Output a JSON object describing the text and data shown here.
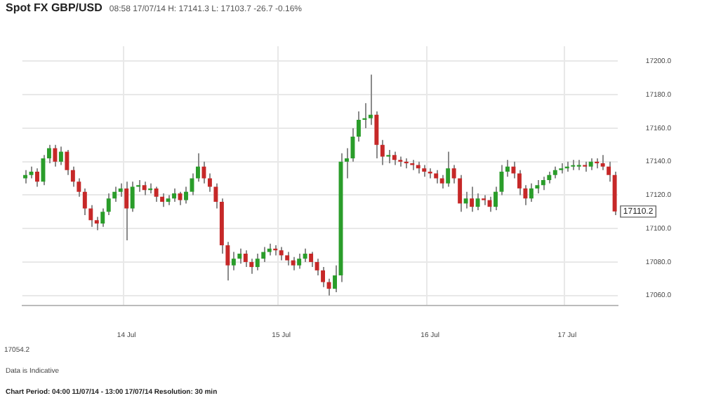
{
  "chart_data": {
    "type": "candlestick",
    "title": "Spot FX GBP/USD",
    "subtitle": "08:58 17/07/14  H: 17141.3  L: 17103.7  -26.7  -0.16%",
    "categories": [
      null,
      null,
      null,
      null,
      null,
      null,
      null,
      null,
      null,
      null,
      null,
      null,
      null,
      null,
      null,
      null,
      null,
      "14 Jul",
      null,
      null,
      null,
      null,
      null,
      null,
      null,
      null,
      null,
      null,
      null,
      null,
      null,
      null,
      null,
      null,
      null,
      null,
      null,
      null,
      null,
      null,
      null,
      null,
      null,
      "15 Jul",
      null,
      null,
      null,
      null,
      null,
      null,
      null,
      null,
      null,
      null,
      null,
      null,
      null,
      null,
      null,
      null,
      null,
      null,
      null,
      null,
      null,
      null,
      null,
      null,
      "16 Jul",
      null,
      null,
      null,
      null,
      null,
      null,
      null,
      null,
      null,
      null,
      null,
      null,
      null,
      null,
      null,
      null,
      null,
      null,
      null,
      null,
      null,
      null,
      "17 Jul",
      null,
      null,
      null,
      null,
      null,
      null,
      null,
      null
    ],
    "ohlc": [
      [
        17130,
        17135,
        17127,
        17132
      ],
      [
        17132,
        17137,
        17130,
        17134
      ],
      [
        17134,
        17136,
        17125,
        17128
      ],
      [
        17128,
        17144,
        17126,
        17142
      ],
      [
        17142,
        17150,
        17139,
        17148
      ],
      [
        17148,
        17150,
        17137,
        17140
      ],
      [
        17140,
        17149,
        17138,
        17146
      ],
      [
        17146,
        17147,
        17132,
        17135
      ],
      [
        17135,
        17137,
        17125,
        17128
      ],
      [
        17128,
        17130,
        17119,
        17122
      ],
      [
        17122,
        17124,
        17108,
        17112
      ],
      [
        17112,
        17114,
        17101,
        17105
      ],
      [
        17105,
        17107,
        17099,
        17103
      ],
      [
        17103,
        17112,
        17101,
        17110
      ],
      [
        17110,
        17121,
        17108,
        17118
      ],
      [
        17118,
        17125,
        17116,
        17122
      ],
      [
        17122,
        17127,
        17119,
        17124
      ],
      [
        17124,
        17128,
        17093,
        17112
      ],
      [
        17112,
        17128,
        17110,
        17125
      ],
      [
        17125,
        17129,
        17122,
        17126
      ],
      [
        17126,
        17128,
        17120,
        17123
      ],
      [
        17123,
        17127,
        17121,
        17124
      ],
      [
        17124,
        17125,
        17116,
        17119
      ],
      [
        17119,
        17121,
        17113,
        17116
      ],
      [
        17116,
        17120,
        17114,
        17118
      ],
      [
        17118,
        17124,
        17116,
        17121
      ],
      [
        17121,
        17122,
        17114,
        17117
      ],
      [
        17117,
        17125,
        17115,
        17122
      ],
      [
        17122,
        17133,
        17120,
        17130
      ],
      [
        17130,
        17145,
        17128,
        17137
      ],
      [
        17137,
        17140,
        17127,
        17130
      ],
      [
        17130,
        17133,
        17122,
        17125
      ],
      [
        17125,
        17127,
        17112,
        17116
      ],
      [
        17116,
        17118,
        17085,
        17090
      ],
      [
        17090,
        17092,
        17069,
        17078
      ],
      [
        17078,
        17086,
        17075,
        17082
      ],
      [
        17082,
        17088,
        17079,
        17085
      ],
      [
        17085,
        17087,
        17077,
        17080
      ],
      [
        17080,
        17082,
        17073,
        17077
      ],
      [
        17077,
        17085,
        17075,
        17082
      ],
      [
        17082,
        17089,
        17080,
        17086
      ],
      [
        17086,
        17091,
        17084,
        17088
      ],
      [
        17088,
        17090,
        17084,
        17087
      ],
      [
        17087,
        17089,
        17081,
        17084
      ],
      [
        17084,
        17086,
        17078,
        17081
      ],
      [
        17081,
        17083,
        17075,
        17078
      ],
      [
        17078,
        17085,
        17076,
        17082
      ],
      [
        17082,
        17088,
        17080,
        17085
      ],
      [
        17085,
        17086,
        17077,
        17080
      ],
      [
        17080,
        17082,
        17072,
        17075
      ],
      [
        17075,
        17077,
        17065,
        17068
      ],
      [
        17068,
        17070,
        17060,
        17064
      ],
      [
        17064,
        17078,
        17062,
        17072
      ],
      [
        17072,
        17145,
        17068,
        17140
      ],
      [
        17140,
        17148,
        17130,
        17142
      ],
      [
        17142,
        17160,
        17140,
        17155
      ],
      [
        17155,
        17170,
        17152,
        17165
      ],
      [
        17165,
        17175,
        17160,
        17166
      ],
      [
        17166,
        17192,
        17162,
        17168
      ],
      [
        17168,
        17170,
        17142,
        17150
      ],
      [
        17150,
        17153,
        17138,
        17143
      ],
      [
        17143,
        17147,
        17139,
        17144
      ],
      [
        17144,
        17146,
        17138,
        17141
      ],
      [
        17141,
        17143,
        17137,
        17140
      ],
      [
        17140,
        17142,
        17136,
        17139
      ],
      [
        17139,
        17141,
        17135,
        17138
      ],
      [
        17138,
        17140,
        17133,
        17136
      ],
      [
        17136,
        17138,
        17131,
        17134
      ],
      [
        17134,
        17136,
        17130,
        17133
      ],
      [
        17133,
        17135,
        17127,
        17130
      ],
      [
        17130,
        17132,
        17124,
        17127
      ],
      [
        17127,
        17146,
        17125,
        17136
      ],
      [
        17136,
        17138,
        17127,
        17130
      ],
      [
        17130,
        17132,
        17110,
        17115
      ],
      [
        17115,
        17122,
        17112,
        17118
      ],
      [
        17118,
        17125,
        17110,
        17113
      ],
      [
        17113,
        17121,
        17111,
        17118
      ],
      [
        17118,
        17120,
        17114,
        17117
      ],
      [
        17117,
        17119,
        17110,
        17113
      ],
      [
        17113,
        17125,
        17111,
        17122
      ],
      [
        17122,
        17138,
        17120,
        17134
      ],
      [
        17134,
        17141,
        17131,
        17137
      ],
      [
        17137,
        17140,
        17130,
        17133
      ],
      [
        17133,
        17135,
        17120,
        17124
      ],
      [
        17124,
        17126,
        17114,
        17118
      ],
      [
        17118,
        17127,
        17116,
        17124
      ],
      [
        17124,
        17129,
        17121,
        17126
      ],
      [
        17126,
        17131,
        17123,
        17129
      ],
      [
        17129,
        17134,
        17127,
        17132
      ],
      [
        17132,
        17137,
        17130,
        17135
      ],
      [
        17135,
        17139,
        17133,
        17136
      ],
      [
        17136,
        17140,
        17134,
        17137
      ],
      [
        17137,
        17141,
        17135,
        17137
      ],
      [
        17137,
        17141,
        17135,
        17138
      ],
      [
        17138,
        17140,
        17134,
        17137
      ],
      [
        17137,
        17142,
        17135,
        17140
      ],
      [
        17140,
        17142,
        17136,
        17139
      ],
      [
        17139,
        17144,
        17135,
        17137
      ],
      [
        17137,
        17140,
        17128,
        17132
      ],
      [
        17132,
        17134,
        17108,
        17110.2
      ]
    ],
    "colors": [
      "#2a9d2a",
      "#2a9d2a",
      "#c62828",
      "#2a9d2a",
      "#2a9d2a",
      "#c62828",
      "#2a9d2a",
      "#c62828",
      "#c62828",
      "#c62828",
      "#c62828",
      "#c62828",
      "#c62828",
      "#2a9d2a",
      "#2a9d2a",
      "#2a9d2a",
      "#2a9d2a",
      "#c62828",
      "#2a9d2a",
      "#2a9d2a",
      "#c62828",
      "#2a9d2a",
      "#c62828",
      "#c62828",
      "#2a9d2a",
      "#2a9d2a",
      "#c62828",
      "#2a9d2a",
      "#2a9d2a",
      "#2a9d2a",
      "#c62828",
      "#c62828",
      "#c62828",
      "#c62828",
      "#c62828",
      "#2a9d2a",
      "#2a9d2a",
      "#c62828",
      "#c62828",
      "#2a9d2a",
      "#2a9d2a",
      "#2a9d2a",
      "#c62828",
      "#c62828",
      "#c62828",
      "#c62828",
      "#2a9d2a",
      "#2a9d2a",
      "#c62828",
      "#c62828",
      "#c62828",
      "#c62828",
      "#2a9d2a",
      "#2a9d2a",
      "#2a9d2a",
      "#2a9d2a",
      "#2a9d2a",
      "#2a9d2a",
      "#2a9d2a",
      "#c62828",
      "#c62828",
      "#2a9d2a",
      "#c62828",
      "#c62828",
      "#c62828",
      "#c62828",
      "#c62828",
      "#c62828",
      "#c62828",
      "#c62828",
      "#c62828",
      "#2a9d2a",
      "#c62828",
      "#c62828",
      "#2a9d2a",
      "#c62828",
      "#2a9d2a",
      "#c62828",
      "#c62828",
      "#2a9d2a",
      "#2a9d2a",
      "#2a9d2a",
      "#c62828",
      "#c62828",
      "#c62828",
      "#2a9d2a",
      "#2a9d2a",
      "#2a9d2a",
      "#2a9d2a",
      "#2a9d2a",
      "#2a9d2a",
      "#2a9d2a",
      "#2a9d2a",
      "#2a9d2a",
      "#c62828",
      "#2a9d2a",
      "#c62828",
      "#c62828",
      "#c62828",
      "#c62828"
    ],
    "ylim": [
      17054,
      17209
    ],
    "yticks": [
      {
        "value": 17060,
        "label": "17060.0"
      },
      {
        "value": 17080,
        "label": "17080.0"
      },
      {
        "value": 17100,
        "label": "17100.0"
      },
      {
        "value": 17120,
        "label": "17120.0"
      },
      {
        "value": 17140,
        "label": "17140.0"
      },
      {
        "value": 17160,
        "label": "17160.0"
      },
      {
        "value": 17180,
        "label": "17180.0"
      },
      {
        "value": 17200,
        "label": "17200.0"
      }
    ],
    "grid": true,
    "legend": false,
    "annotations": [
      {
        "text": "17110.2",
        "y": 17110.2
      },
      "17054.2",
      "Data is Indicative",
      "Chart Period: 04:00 11/07/14 - 13:00 17/07/14    Resolution: 30 min"
    ]
  }
}
